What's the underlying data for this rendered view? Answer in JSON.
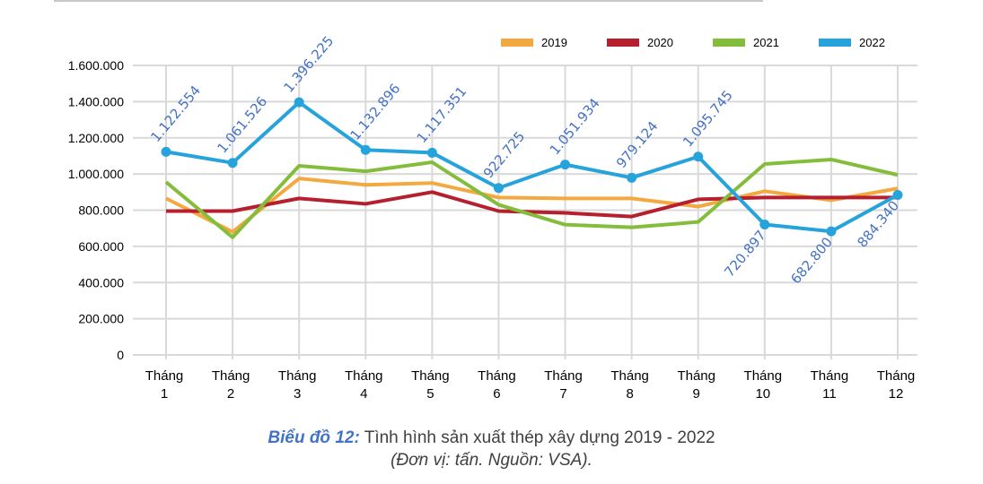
{
  "chart_data": {
    "type": "line",
    "title": "",
    "xlabel": "",
    "ylabel": "",
    "categories": [
      "Tháng 1",
      "Tháng 2",
      "Tháng 3",
      "Tháng 4",
      "Tháng 5",
      "Tháng 6",
      "Tháng 7",
      "Tháng 8",
      "Tháng 9",
      "Tháng 10",
      "Tháng 11",
      "Tháng 12"
    ],
    "ylim": [
      0,
      1600000
    ],
    "yticks": [
      0,
      200000,
      400000,
      600000,
      800000,
      1000000,
      1200000,
      1400000,
      1600000
    ],
    "ytick_labels": [
      "0",
      "200.000",
      "400.000",
      "600.000",
      "800.000",
      "1.000.000",
      "1.200.000",
      "1.400.000",
      "1.600.000"
    ],
    "grid": true,
    "legend_position": "top-right",
    "series": [
      {
        "name": "2019",
        "color": "#f4a940",
        "values": [
          865000,
          680000,
          975000,
          940000,
          950000,
          870000,
          865000,
          865000,
          820000,
          905000,
          855000,
          920000
        ]
      },
      {
        "name": "2020",
        "color": "#b51f2e",
        "values": [
          795000,
          795000,
          865000,
          835000,
          900000,
          795000,
          785000,
          765000,
          860000,
          870000,
          870000,
          870000
        ]
      },
      {
        "name": "2021",
        "color": "#84bd3c",
        "values": [
          955000,
          650000,
          1045000,
          1015000,
          1065000,
          830000,
          720000,
          705000,
          735000,
          1055000,
          1080000,
          995000
        ]
      },
      {
        "name": "2022",
        "color": "#27a3dc",
        "values": [
          1122554,
          1061526,
          1396225,
          1132896,
          1117351,
          922725,
          1051934,
          979124,
          1095745,
          720897,
          682800,
          884340
        ],
        "data_labels": [
          "1.122.554",
          "1.061.526",
          "1.396.225",
          "1.132.896",
          "1.117.351",
          "922.725",
          "1.051.934",
          "979.124",
          "1.095.745",
          "720.897",
          "682.800",
          "884.340"
        ],
        "markers": true
      }
    ]
  },
  "caption": {
    "lead": "Biểu đồ 12:",
    "title": "Tình hình sản xuất thép xây dựng 2019 - 2022",
    "note": "(Đơn vị: tấn. Nguồn: VSA)."
  },
  "legend": [
    {
      "label": "2019",
      "color": "#f4a940"
    },
    {
      "label": "2020",
      "color": "#b51f2e"
    },
    {
      "label": "2021",
      "color": "#84bd3c"
    },
    {
      "label": "2022",
      "color": "#27a3dc"
    }
  ],
  "colors": {
    "grid": "#d9d9d9",
    "data_label": "#4472c4",
    "axis_text": "#000000"
  }
}
